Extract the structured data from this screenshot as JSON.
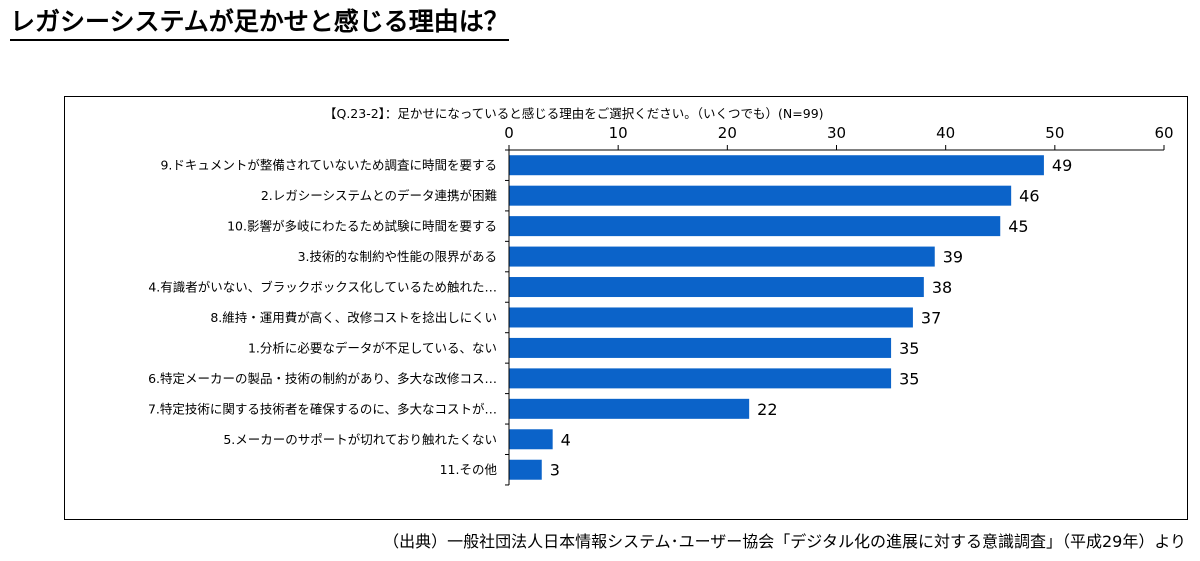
{
  "page": {
    "title": "レガシーシステムが足かせと感じる理由は？",
    "source": "（出典）一般社団法人日本情報システム･ユーザー協会「デジタル化の進展に対する意識調査」（平成29年）より"
  },
  "colors": {
    "bar": "#0b63c9",
    "axis": "#000000",
    "gridline": "#000000"
  },
  "chart_data": {
    "type": "bar",
    "orientation": "horizontal",
    "title": "【Q.23-2】：足かせになっていると感じる理由をご選択ください。（いくつでも）(N=99)",
    "xlabel": "",
    "ylabel": "",
    "xlim": [
      0,
      60
    ],
    "ticks": [
      0,
      10,
      20,
      30,
      40,
      50,
      60
    ],
    "x_axis_position": "top",
    "grid": false,
    "data_labels": true,
    "categories": [
      "9.ドキュメントが整備されていないため調査に時間を要する",
      "2.レガシーシステムとのデータ連携が困難",
      "10.影響が多岐にわたるため試験に時間を要する",
      "3.技術的な制約や性能の限界がある",
      "4.有識者がいない、ブラックボックス化しているため触れた…",
      "8.維持・運用費が高く、改修コストを捻出しにくい",
      "1.分析に必要なデータが不足している、ない",
      "6.特定メーカーの製品・技術の制約があり、多大な改修コス…",
      "7.特定技術に関する技術者を確保するのに、多大なコストが…",
      "5.メーカーのサポートが切れており触れたくない",
      "11.その他"
    ],
    "values": [
      49,
      46,
      45,
      39,
      38,
      37,
      35,
      35,
      22,
      4,
      3
    ]
  }
}
